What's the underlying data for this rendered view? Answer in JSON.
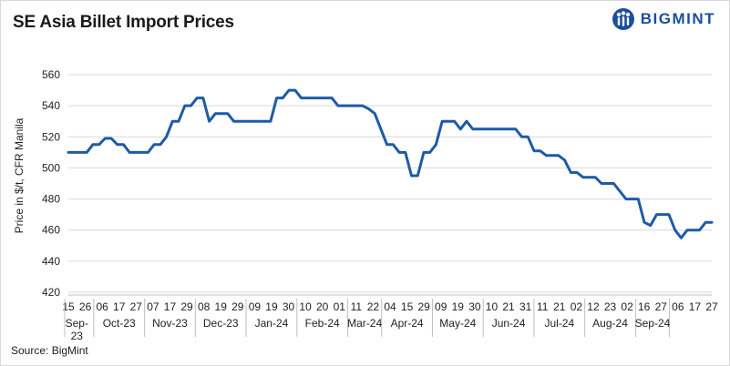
{
  "header": {
    "title": "SE Asia Billet Import Prices"
  },
  "logo": {
    "text": "BIGMINT",
    "color": "#1b4f9b"
  },
  "source": "Source: BigMint",
  "chart_data": {
    "type": "line",
    "title": "SE Asia Billet Import Prices",
    "ylabel": "Price in $/t, CFR Manila",
    "xlabel": "",
    "ylim": [
      420,
      560
    ],
    "yticks": [
      420,
      440,
      460,
      480,
      500,
      520,
      540,
      560
    ],
    "grid": true,
    "line_color": "#1f5aa6",
    "x_tick_labels": [
      "15",
      "26",
      "06",
      "17",
      "27",
      "07",
      "17",
      "29",
      "08",
      "19",
      "29",
      "09",
      "19",
      "30",
      "10",
      "20",
      "01",
      "11",
      "22",
      "04",
      "15",
      "29",
      "09",
      "19",
      "30",
      "10",
      "21",
      "31",
      "11",
      "21",
      "02",
      "12",
      "23",
      "02",
      "16",
      "27",
      "06",
      "17",
      "27"
    ],
    "months": [
      {
        "label": "Sep-23",
        "first_tick": 0,
        "last_tick": 1
      },
      {
        "label": "Oct-23",
        "first_tick": 2,
        "last_tick": 4
      },
      {
        "label": "Nov-23",
        "first_tick": 5,
        "last_tick": 7
      },
      {
        "label": "Dec-23",
        "first_tick": 8,
        "last_tick": 10
      },
      {
        "label": "Jan-24",
        "first_tick": 11,
        "last_tick": 13
      },
      {
        "label": "Feb-24",
        "first_tick": 14,
        "last_tick": 16
      },
      {
        "label": "Mar-24",
        "first_tick": 17,
        "last_tick": 18
      },
      {
        "label": "Apr-24",
        "first_tick": 19,
        "last_tick": 21
      },
      {
        "label": "May-24",
        "first_tick": 22,
        "last_tick": 24
      },
      {
        "label": "Jun-24",
        "first_tick": 25,
        "last_tick": 27
      },
      {
        "label": "Jul-24",
        "first_tick": 28,
        "last_tick": 30
      },
      {
        "label": "Aug-24",
        "first_tick": 31,
        "last_tick": 33
      },
      {
        "label": "Sep-24",
        "first_tick": 34,
        "last_tick": 35
      }
    ],
    "values": [
      510,
      510,
      510,
      510,
      515,
      515,
      519,
      519,
      515,
      515,
      510,
      510,
      510,
      510,
      515,
      515,
      520,
      530,
      530,
      540,
      540,
      545,
      545,
      530,
      535,
      535,
      535,
      530,
      530,
      530,
      530,
      530,
      530,
      530,
      545,
      545,
      550,
      550,
      545,
      545,
      545,
      545,
      545,
      545,
      540,
      540,
      540,
      540,
      540,
      538,
      535,
      525,
      515,
      515,
      510,
      510,
      495,
      495,
      510,
      510,
      515,
      530,
      530,
      530,
      525,
      530,
      525,
      525,
      525,
      525,
      525,
      525,
      525,
      525,
      520,
      520,
      511,
      511,
      508,
      508,
      508,
      505,
      497,
      497,
      494,
      494,
      494,
      490,
      490,
      490,
      485,
      480,
      480,
      480,
      465,
      463,
      470,
      470,
      470,
      460,
      455,
      460,
      460,
      460,
      465,
      465
    ]
  }
}
